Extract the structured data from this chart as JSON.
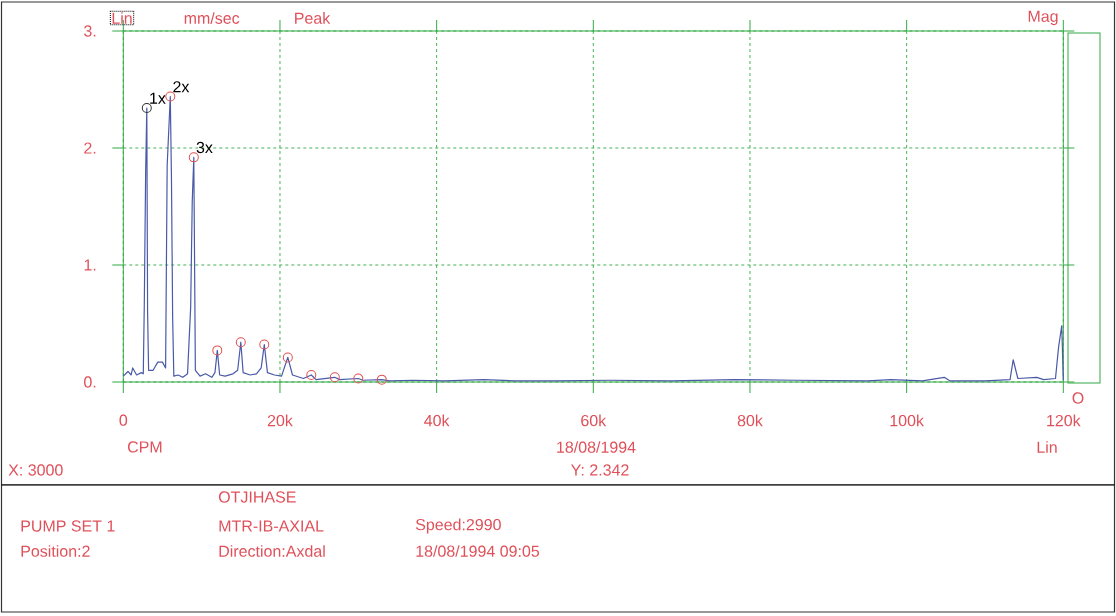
{
  "chart_data": {
    "type": "line",
    "xlabel": "CPM",
    "ylabel": "mm/sec",
    "xlim": [
      0,
      120000
    ],
    "ylim": [
      0,
      3
    ],
    "xticks": [
      0,
      {
        "value": 20000,
        "label": "20k"
      },
      {
        "value": 40000,
        "label": "40k"
      },
      {
        "value": 60000,
        "label": "60k"
      },
      {
        "value": 80000,
        "label": "80k"
      },
      {
        "value": 100000,
        "label": "100k"
      },
      {
        "value": 120000,
        "label": "120k"
      }
    ],
    "yticks": [
      {
        "value": 0,
        "label": "0."
      },
      {
        "value": 1,
        "label": "1."
      },
      {
        "value": 2,
        "label": "2."
      },
      {
        "value": 3,
        "label": "3."
      }
    ],
    "grid": true,
    "series": [
      {
        "color": "#4a5aa8",
        "x": [
          0,
          600,
          1000,
          1200,
          1700,
          2300,
          2550,
          2680,
          2850,
          3000,
          3100,
          3230,
          3800,
          4400,
          5000,
          5400,
          5600,
          6000,
          6150,
          6300,
          6450,
          7000,
          7600,
          8200,
          8600,
          8800,
          9000,
          9200,
          9800,
          10500,
          11300,
          11700,
          12000,
          12300,
          13000,
          14000,
          14600,
          15000,
          15300,
          16200,
          17000,
          17600,
          18000,
          18400,
          19300,
          20200,
          20600,
          21000,
          21600,
          23000,
          24000,
          24600,
          27000,
          27600,
          30000,
          30600,
          33000,
          34000,
          37000,
          41000,
          46000,
          50000,
          55000,
          62000,
          70000,
          78000,
          86000,
          95000,
          98000,
          102000,
          104800,
          105500,
          110000,
          113200,
          113600,
          114200,
          116600,
          117500,
          119000,
          119400,
          119800,
          120000
        ],
        "values": [
          0.05,
          0.09,
          0.06,
          0.12,
          0.06,
          0.08,
          0.07,
          0.66,
          1.78,
          2.342,
          0.6,
          0.1,
          0.1,
          0.17,
          0.17,
          0.12,
          1.85,
          2.44,
          1.73,
          0.55,
          0.05,
          0.06,
          0.04,
          0.07,
          0.64,
          1.54,
          1.92,
          0.1,
          0.05,
          0.07,
          0.04,
          0.08,
          0.27,
          0.06,
          0.05,
          0.07,
          0.1,
          0.34,
          0.08,
          0.06,
          0.07,
          0.12,
          0.32,
          0.08,
          0.06,
          0.05,
          0.13,
          0.21,
          0.06,
          0.03,
          0.06,
          0.02,
          0.04,
          0.02,
          0.03,
          0.015,
          0.02,
          0.01,
          0.015,
          0.01,
          0.02,
          0.01,
          0.01,
          0.015,
          0.01,
          0.02,
          0.015,
          0.01,
          0.02,
          0.01,
          0.04,
          0.01,
          0.01,
          0.02,
          0.19,
          0.03,
          0.04,
          0.02,
          0.03,
          0.3,
          0.48,
          0.02
        ]
      },
      {
        "type": "scatter",
        "marker": "circle",
        "colors": [
          "#333333",
          "#e05050",
          "#e05050",
          "#e05050",
          "#e05050",
          "#e05050",
          "#e05050",
          "#e05050",
          "#e05050",
          "#e05050",
          "#e05050"
        ],
        "x": [
          3000,
          6000,
          9000,
          12000,
          15000,
          18000,
          21000,
          24000,
          27000,
          30000,
          33000
        ],
        "values": [
          2.342,
          2.44,
          1.92,
          0.27,
          0.34,
          0.32,
          0.21,
          0.06,
          0.04,
          0.03,
          0.02
        ]
      }
    ],
    "annotations": [
      {
        "text": "1x",
        "x": 3000,
        "y": 2.342
      },
      {
        "text": "2x",
        "x": 6000,
        "y": 2.44
      },
      {
        "text": "3x",
        "x": 9000,
        "y": 1.92
      },
      "Lin",
      "Peak",
      "Mag",
      "O",
      "18/08/1994",
      "Lin",
      "X: 3000",
      "Y: 2.342",
      "OTJIHASE",
      "PUMP SET 1",
      "MTR-IB-AXIAL",
      "Speed:2990",
      "Position:2",
      "Direction:Axdal",
      "18/08/1994 09:05"
    ]
  }
}
